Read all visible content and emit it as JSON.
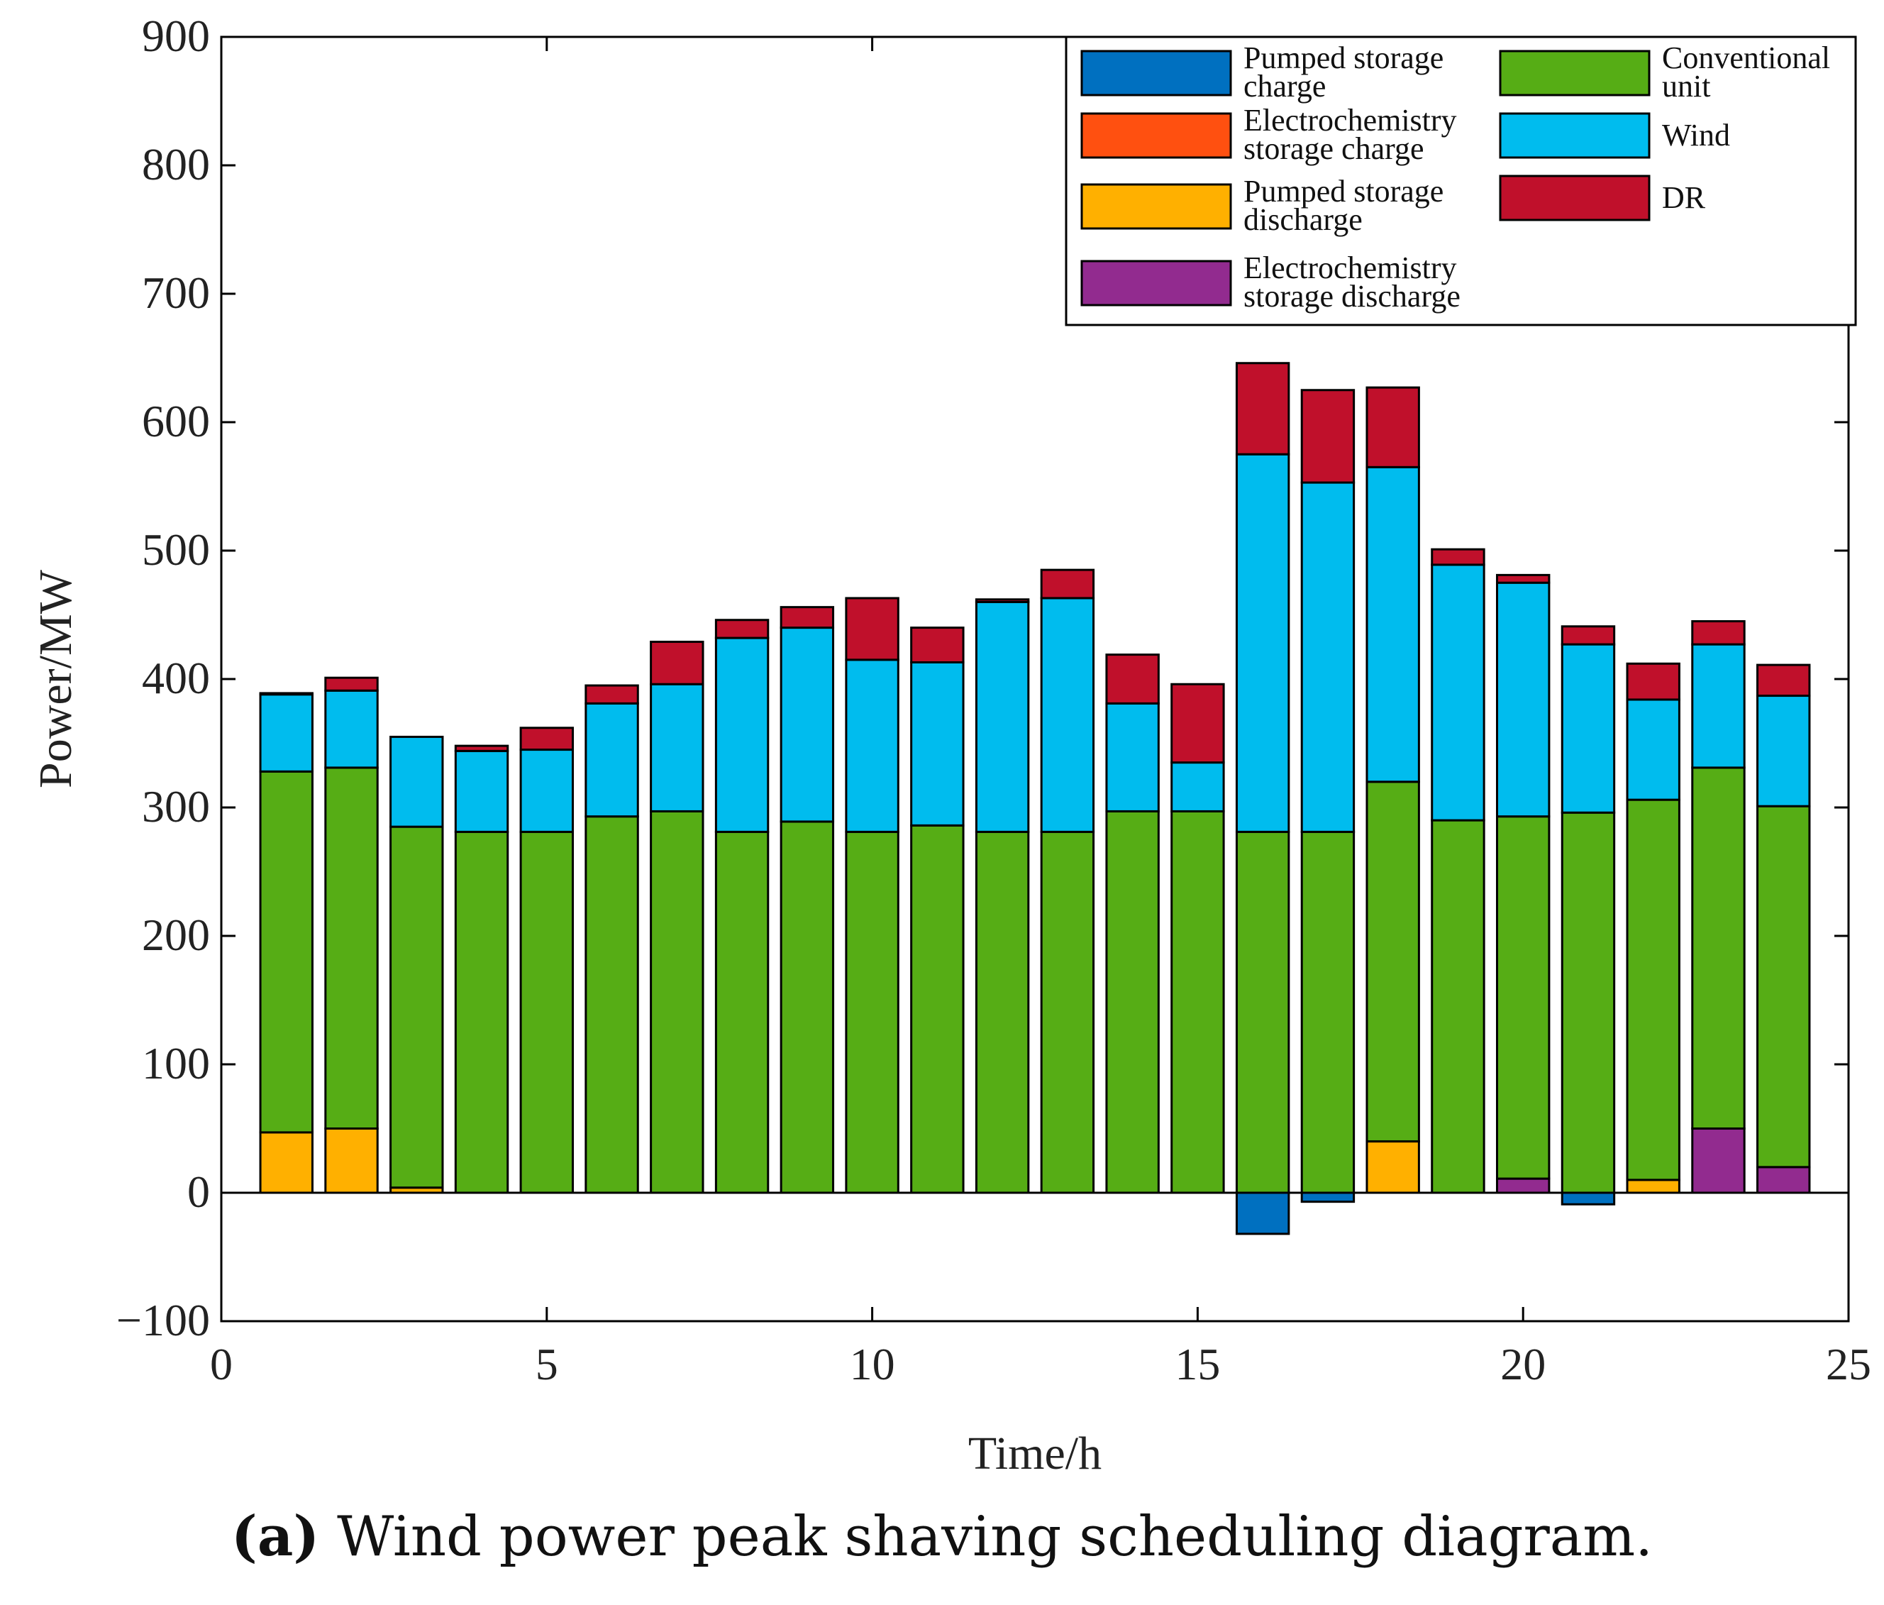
{
  "chart_data": {
    "type": "bar",
    "stacked": true,
    "xlabel": "Time/h",
    "ylabel": "Power/MW",
    "xlim": [
      0,
      25
    ],
    "ylim": [
      -100,
      900
    ],
    "xticks": [
      0,
      5,
      10,
      15,
      20,
      25
    ],
    "yticks": [
      -100,
      0,
      100,
      200,
      300,
      400,
      500,
      600,
      700,
      800,
      900
    ],
    "ytick_labels": [
      "−100",
      "0",
      "100",
      "200",
      "300",
      "400",
      "500",
      "600",
      "700",
      "800",
      "900"
    ],
    "legend_position": "top-right",
    "x": [
      1,
      2,
      3,
      4,
      5,
      6,
      7,
      8,
      9,
      10,
      11,
      12,
      13,
      14,
      15,
      16,
      17,
      18,
      19,
      20,
      21,
      22,
      23,
      24
    ],
    "series": [
      {
        "name": "Pumped storage charge",
        "color": "#0070C0",
        "values": [
          0,
          0,
          0,
          0,
          0,
          0,
          0,
          0,
          0,
          0,
          0,
          0,
          0,
          0,
          0,
          -32,
          -7,
          0,
          0,
          0,
          -9,
          0,
          0,
          0
        ]
      },
      {
        "name": "Electrochemistry storage charge",
        "color": "#FF5010",
        "values": [
          0,
          0,
          0,
          0,
          0,
          0,
          0,
          0,
          0,
          0,
          0,
          0,
          0,
          0,
          0,
          0,
          0,
          0,
          0,
          0,
          0,
          0,
          0,
          0
        ]
      },
      {
        "name": "Pumped storage discharge",
        "color": "#FFB000",
        "values": [
          47,
          50,
          4,
          0,
          0,
          0,
          0,
          0,
          0,
          0,
          0,
          0,
          0,
          0,
          0,
          0,
          0,
          40,
          0,
          0,
          0,
          10,
          0,
          0
        ]
      },
      {
        "name": "Electrochemistry storage discharge",
        "color": "#922B8F",
        "values": [
          0,
          0,
          0,
          0,
          0,
          0,
          0,
          0,
          0,
          0,
          0,
          0,
          0,
          0,
          0,
          0,
          0,
          0,
          0,
          11,
          0,
          0,
          50,
          20
        ]
      },
      {
        "name": "Conventional unit",
        "color": "#56AD15",
        "values": [
          281,
          281,
          281,
          281,
          281,
          293,
          297,
          281,
          289,
          281,
          286,
          281,
          281,
          297,
          297,
          281,
          281,
          280,
          290,
          282,
          296,
          296,
          281,
          281
        ]
      },
      {
        "name": "Wind",
        "color": "#00BCEE",
        "values": [
          60,
          60,
          70,
          63,
          64,
          88,
          99,
          151,
          151,
          134,
          127,
          179,
          182,
          84,
          38,
          294,
          272,
          245,
          199,
          182,
          131,
          78,
          96,
          86
        ]
      },
      {
        "name": "DR",
        "color": "#C0102B",
        "values": [
          1,
          10,
          0,
          4,
          17,
          14,
          33,
          14,
          16,
          48,
          27,
          2,
          22,
          38,
          61,
          71,
          72,
          62,
          12,
          6,
          14,
          28,
          18,
          24
        ]
      }
    ],
    "legend_entries": [
      {
        "line1": "Pumped storage",
        "line2": "charge",
        "series": 0
      },
      {
        "line1": "Electrochemistry",
        "line2": "storage charge",
        "series": 1
      },
      {
        "line1": "Pumped storage",
        "line2": "discharge",
        "series": 2
      },
      {
        "line1": "Electrochemistry",
        "line2": "storage discharge",
        "series": 3
      },
      {
        "line1": "Conventional",
        "line2": "unit",
        "series": 4
      },
      {
        "line1": "Wind",
        "line2": "",
        "series": 5
      },
      {
        "line1": "DR",
        "line2": "",
        "series": 6
      }
    ]
  },
  "caption": {
    "label": "(a)",
    "text": " Wind power peak shaving scheduling diagram."
  }
}
